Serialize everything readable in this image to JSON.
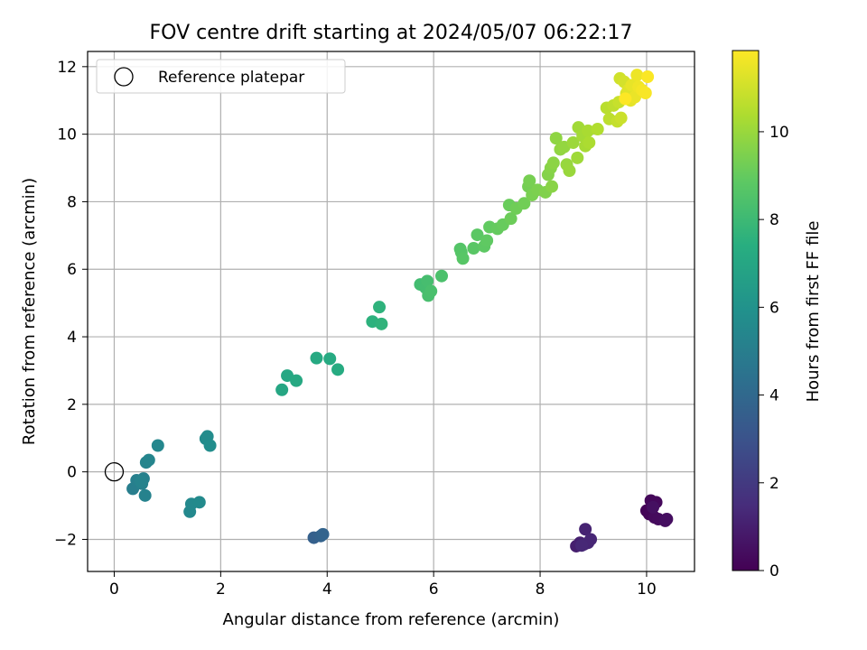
{
  "chart_data": {
    "type": "scatter",
    "title": "FOV centre drift starting at 2024/05/07 06:22:17",
    "xlabel": "Angular distance from reference (arcmin)",
    "ylabel": "Rotation from reference (arcmin)",
    "xlim": [
      -0.5,
      10.9
    ],
    "ylim": [
      -2.95,
      12.45
    ],
    "xticks": [
      0,
      2,
      4,
      6,
      8,
      10
    ],
    "yticks": [
      -2,
      0,
      2,
      4,
      6,
      8,
      10,
      12
    ],
    "grid": true,
    "legend": {
      "placement": "top-left",
      "entries": [
        "Reference platepar"
      ]
    },
    "reference_point": {
      "x": 0,
      "y": 0,
      "label": "Reference platepar"
    },
    "colorbar": {
      "label": "Hours from first FF file",
      "colormap": "viridis",
      "range": [
        0,
        11.85
      ],
      "ticks": [
        0,
        2,
        4,
        6,
        8,
        10
      ]
    },
    "series": [
      {
        "points": [
          {
            "x": 10.0,
            "y": -1.15,
            "c": 0.1
          },
          {
            "x": 10.05,
            "y": -1.25,
            "c": 0.15
          },
          {
            "x": 10.08,
            "y": -0.85,
            "c": 0.2
          },
          {
            "x": 10.18,
            "y": -0.9,
            "c": 0.25
          },
          {
            "x": 10.15,
            "y": -1.35,
            "c": 0.3
          },
          {
            "x": 10.22,
            "y": -1.4,
            "c": 0.35
          },
          {
            "x": 10.35,
            "y": -1.45,
            "c": 0.4
          },
          {
            "x": 10.38,
            "y": -1.4,
            "c": 0.45
          },
          {
            "x": 10.12,
            "y": -1.05,
            "c": 0.5
          },
          {
            "x": 8.68,
            "y": -2.2,
            "c": 1.0
          },
          {
            "x": 8.75,
            "y": -2.1,
            "c": 1.05
          },
          {
            "x": 8.82,
            "y": -2.15,
            "c": 1.1
          },
          {
            "x": 8.85,
            "y": -1.7,
            "c": 1.15
          },
          {
            "x": 8.9,
            "y": -2.1,
            "c": 1.2
          },
          {
            "x": 8.95,
            "y": -2.0,
            "c": 1.25
          },
          {
            "x": 8.78,
            "y": -2.18,
            "c": 1.3
          },
          {
            "x": 3.75,
            "y": -1.95,
            "c": 3.6
          },
          {
            "x": 3.88,
            "y": -1.9,
            "c": 3.7
          },
          {
            "x": 3.92,
            "y": -1.85,
            "c": 3.8
          },
          {
            "x": 0.35,
            "y": -0.5,
            "c": 5.0
          },
          {
            "x": 0.42,
            "y": -0.25,
            "c": 5.05
          },
          {
            "x": 0.55,
            "y": -0.2,
            "c": 5.1
          },
          {
            "x": 0.52,
            "y": -0.35,
            "c": 5.15
          },
          {
            "x": 0.58,
            "y": -0.7,
            "c": 5.2
          },
          {
            "x": 0.5,
            "y": -0.28,
            "c": 5.25
          },
          {
            "x": 0.6,
            "y": 0.28,
            "c": 5.3
          },
          {
            "x": 0.65,
            "y": 0.35,
            "c": 5.35
          },
          {
            "x": 0.82,
            "y": 0.78,
            "c": 5.45
          },
          {
            "x": 1.42,
            "y": -1.18,
            "c": 5.5
          },
          {
            "x": 1.45,
            "y": -0.95,
            "c": 5.55
          },
          {
            "x": 1.6,
            "y": -0.9,
            "c": 5.6
          },
          {
            "x": 1.72,
            "y": 0.98,
            "c": 5.65
          },
          {
            "x": 1.75,
            "y": 1.05,
            "c": 5.7
          },
          {
            "x": 1.8,
            "y": 0.78,
            "c": 5.75
          },
          {
            "x": 3.15,
            "y": 2.43,
            "c": 7.0
          },
          {
            "x": 3.25,
            "y": 2.85,
            "c": 7.05
          },
          {
            "x": 3.42,
            "y": 2.7,
            "c": 7.1
          },
          {
            "x": 3.8,
            "y": 3.37,
            "c": 7.15
          },
          {
            "x": 4.05,
            "y": 3.35,
            "c": 7.2
          },
          {
            "x": 4.2,
            "y": 3.03,
            "c": 7.25
          },
          {
            "x": 4.85,
            "y": 4.45,
            "c": 7.55
          },
          {
            "x": 4.98,
            "y": 4.88,
            "c": 7.6
          },
          {
            "x": 5.02,
            "y": 4.38,
            "c": 7.65
          },
          {
            "x": 5.75,
            "y": 5.55,
            "c": 8.15
          },
          {
            "x": 5.85,
            "y": 5.45,
            "c": 8.2
          },
          {
            "x": 5.88,
            "y": 5.65,
            "c": 8.25
          },
          {
            "x": 5.9,
            "y": 5.22,
            "c": 8.3
          },
          {
            "x": 5.95,
            "y": 5.35,
            "c": 8.35
          },
          {
            "x": 6.15,
            "y": 5.8,
            "c": 8.4
          },
          {
            "x": 6.5,
            "y": 6.6,
            "c": 8.6
          },
          {
            "x": 6.52,
            "y": 6.5,
            "c": 8.65
          },
          {
            "x": 6.55,
            "y": 6.32,
            "c": 8.7
          },
          {
            "x": 6.75,
            "y": 6.62,
            "c": 8.75
          },
          {
            "x": 6.82,
            "y": 7.02,
            "c": 8.8
          },
          {
            "x": 6.95,
            "y": 6.68,
            "c": 8.85
          },
          {
            "x": 7.0,
            "y": 6.85,
            "c": 8.9
          },
          {
            "x": 7.05,
            "y": 7.25,
            "c": 8.95
          },
          {
            "x": 7.2,
            "y": 7.2,
            "c": 9.0
          },
          {
            "x": 7.3,
            "y": 7.32,
            "c": 9.05
          },
          {
            "x": 7.42,
            "y": 7.9,
            "c": 9.1
          },
          {
            "x": 7.45,
            "y": 7.5,
            "c": 9.15
          },
          {
            "x": 7.55,
            "y": 7.8,
            "c": 9.2
          },
          {
            "x": 7.7,
            "y": 7.95,
            "c": 9.25
          },
          {
            "x": 7.78,
            "y": 8.45,
            "c": 9.3
          },
          {
            "x": 7.8,
            "y": 8.62,
            "c": 9.35
          },
          {
            "x": 7.85,
            "y": 8.2,
            "c": 9.4
          },
          {
            "x": 7.95,
            "y": 8.35,
            "c": 9.45
          },
          {
            "x": 8.1,
            "y": 8.28,
            "c": 9.55
          },
          {
            "x": 8.15,
            "y": 8.8,
            "c": 9.6
          },
          {
            "x": 8.2,
            "y": 9.0,
            "c": 9.65
          },
          {
            "x": 8.22,
            "y": 8.45,
            "c": 9.7
          },
          {
            "x": 8.25,
            "y": 9.15,
            "c": 9.75
          },
          {
            "x": 8.3,
            "y": 9.88,
            "c": 9.8
          },
          {
            "x": 8.38,
            "y": 9.55,
            "c": 9.85
          },
          {
            "x": 8.45,
            "y": 9.62,
            "c": 9.9
          },
          {
            "x": 8.5,
            "y": 9.1,
            "c": 9.95
          },
          {
            "x": 8.55,
            "y": 8.92,
            "c": 10.0
          },
          {
            "x": 8.62,
            "y": 9.75,
            "c": 10.05
          },
          {
            "x": 8.7,
            "y": 9.3,
            "c": 10.1
          },
          {
            "x": 8.72,
            "y": 10.2,
            "c": 10.15
          },
          {
            "x": 8.8,
            "y": 9.95,
            "c": 10.2
          },
          {
            "x": 8.85,
            "y": 9.65,
            "c": 10.25
          },
          {
            "x": 8.9,
            "y": 10.1,
            "c": 10.3
          },
          {
            "x": 8.92,
            "y": 9.75,
            "c": 10.35
          },
          {
            "x": 9.08,
            "y": 10.15,
            "c": 10.45
          },
          {
            "x": 9.25,
            "y": 10.78,
            "c": 10.6
          },
          {
            "x": 9.3,
            "y": 10.45,
            "c": 10.65
          },
          {
            "x": 9.38,
            "y": 10.85,
            "c": 10.7
          },
          {
            "x": 9.45,
            "y": 10.38,
            "c": 10.8
          },
          {
            "x": 9.48,
            "y": 10.95,
            "c": 10.85
          },
          {
            "x": 9.52,
            "y": 10.48,
            "c": 10.9
          },
          {
            "x": 9.5,
            "y": 11.65,
            "c": 11.0
          },
          {
            "x": 9.58,
            "y": 11.55,
            "c": 11.1
          },
          {
            "x": 9.62,
            "y": 11.2,
            "c": 11.2
          },
          {
            "x": 9.65,
            "y": 11.3,
            "c": 11.3
          },
          {
            "x": 9.7,
            "y": 11.0,
            "c": 11.4
          },
          {
            "x": 9.72,
            "y": 11.45,
            "c": 11.45
          },
          {
            "x": 9.78,
            "y": 11.1,
            "c": 11.5
          },
          {
            "x": 9.82,
            "y": 11.75,
            "c": 11.55
          },
          {
            "x": 9.85,
            "y": 11.4,
            "c": 11.6
          },
          {
            "x": 9.92,
            "y": 11.3,
            "c": 11.7
          },
          {
            "x": 9.98,
            "y": 11.22,
            "c": 11.75
          },
          {
            "x": 10.02,
            "y": 11.7,
            "c": 11.8
          },
          {
            "x": 9.6,
            "y": 11.05,
            "c": 11.85
          }
        ]
      }
    ]
  }
}
